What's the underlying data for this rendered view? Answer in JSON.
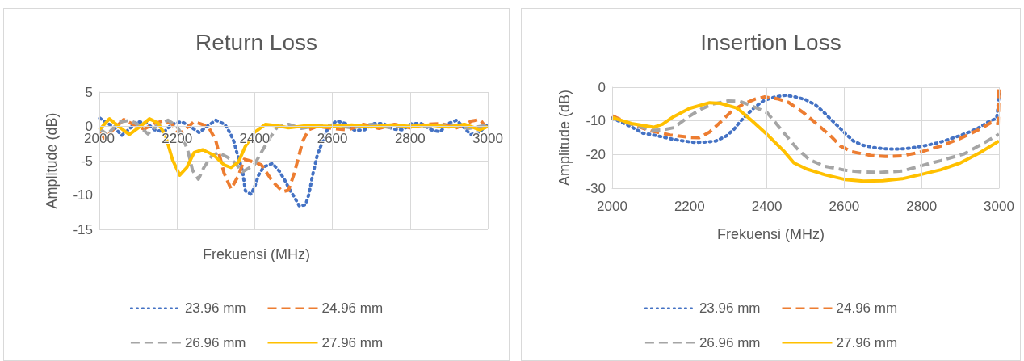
{
  "chart_data": [
    {
      "type": "line",
      "title": "Return Loss",
      "xlabel": "Frekuensi (MHz)",
      "ylabel": "Amplitude (dB)",
      "xlim": [
        2000,
        3000
      ],
      "xticks": [
        2000,
        2200,
        2400,
        2600,
        2800,
        3000
      ],
      "ylim": [
        -15,
        5
      ],
      "yticks": [
        -15,
        -10,
        -5,
        0,
        5
      ],
      "grid": true,
      "legend": "bottom",
      "marker": "none",
      "series": [
        {
          "name": "23.96 mm",
          "color": "#4472c4",
          "line_style": "dotted",
          "x": [
            2001,
            2039,
            2058,
            2077,
            2096,
            2122,
            2142,
            2167,
            2186,
            2212,
            2236,
            2257,
            2277,
            2300,
            2323,
            2337,
            2347,
            2354,
            2362,
            2369,
            2376,
            2391,
            2401,
            2410,
            2423,
            2446,
            2463,
            2477,
            2489,
            2503,
            2515,
            2531,
            2539,
            2544,
            2549,
            2555,
            2561,
            2570,
            2579,
            2590,
            2611,
            2635,
            2658,
            2683,
            2707,
            2732,
            2756,
            2781,
            2804,
            2829,
            2854,
            2877,
            2898,
            2920,
            2956,
            2978,
            3000
          ],
          "values": [
            1.2,
            -0.2,
            -1.3,
            -0.4,
            0.7,
            0.5,
            -0.5,
            -0.8,
            0.3,
            0.7,
            -0.1,
            -0.9,
            0,
            0.9,
            0.3,
            -1,
            -2.3,
            -3.8,
            -5.2,
            -6.6,
            -9.4,
            -9.9,
            -8.6,
            -7.1,
            -5.9,
            -5.4,
            -6.5,
            -7.8,
            -9.1,
            -10.4,
            -11.6,
            -11.4,
            -10,
            -8.6,
            -7.1,
            -5.7,
            -4.2,
            -2.9,
            -1.5,
            -0.1,
            0.8,
            0.4,
            -0.6,
            -0.5,
            0.4,
            0.4,
            -0.4,
            -0.5,
            0.4,
            0.4,
            -0.5,
            -0.8,
            0.4,
            0.9,
            -1.2,
            -0.9,
            0.4
          ]
        },
        {
          "name": "24.96 mm",
          "color": "#ed7d31",
          "line_style": "dashed",
          "x": [
            2000,
            2015,
            2035,
            2063,
            2090,
            2115,
            2140,
            2165,
            2185,
            2207,
            2244,
            2280,
            2299,
            2321,
            2339,
            2358,
            2373,
            2399,
            2417,
            2447,
            2472,
            2487,
            2502,
            2524,
            2539,
            2561,
            2600,
            2640,
            2680,
            2720,
            2760,
            2800,
            2840,
            2880,
            2920,
            2960,
            2980,
            3000
          ],
          "values": [
            -0.9,
            -1.8,
            -0.5,
            1.0,
            0.2,
            -0.4,
            0.4,
            0.8,
            0.5,
            -1.1,
            0.7,
            0,
            -1.9,
            -6.8,
            -9.1,
            -7.2,
            -4.8,
            -5.2,
            -5.6,
            -8.1,
            -9.5,
            -9.3,
            -6.8,
            -2.1,
            -0.5,
            0,
            -0.3,
            -0.5,
            0.3,
            -0.3,
            0.3,
            -0.2,
            0.3,
            0.4,
            -0.2,
            0.8,
            1,
            -0.5
          ]
        },
        {
          "name": "26.96 mm",
          "color": "#a5a5a5",
          "line_style": "dashed",
          "x": [
            2000,
            2020,
            2050,
            2080,
            2100,
            2125,
            2150,
            2177,
            2200,
            2215,
            2229,
            2240,
            2255,
            2269,
            2288,
            2306,
            2330,
            2347,
            2369,
            2399,
            2420,
            2439,
            2458,
            2487,
            2520,
            2550,
            2600,
            2650,
            2700,
            2750,
            2800,
            2850,
            2900,
            2950,
            3000
          ],
          "values": [
            -0.3,
            -1.2,
            0.6,
            0.9,
            0.2,
            -1.1,
            0.2,
            0.9,
            0,
            -1.5,
            -3.8,
            -6.4,
            -7.7,
            -6,
            -4.4,
            -3.8,
            -4.5,
            -5.2,
            -6.6,
            -5.6,
            -3.5,
            -1.7,
            -0.1,
            0.3,
            -0.3,
            0,
            0.2,
            -0.2,
            0.3,
            -0.2,
            0.2,
            0,
            0.3,
            -0.3,
            0.2
          ]
        },
        {
          "name": "27.96 mm",
          "color": "#ffc000",
          "line_style": "solid",
          "x": [
            2000,
            2026,
            2052,
            2077,
            2103,
            2129,
            2151,
            2170,
            2188,
            2207,
            2225,
            2244,
            2266,
            2295,
            2321,
            2339,
            2358,
            2376,
            2399,
            2428,
            2458,
            2487,
            2531,
            2600,
            2650,
            2700,
            2750,
            2800,
            2850,
            2900,
            2940,
            2980,
            3000
          ],
          "values": [
            -0.5,
            1.1,
            -0.1,
            -1.2,
            -0.1,
            1.1,
            0.5,
            -1.3,
            -4.8,
            -7.1,
            -6,
            -3.8,
            -3.4,
            -4.2,
            -5.6,
            -6,
            -5.2,
            -2.9,
            -0.9,
            0.3,
            0.1,
            -0.2,
            0.1,
            0,
            0.2,
            -0.1,
            0.2,
            0,
            0.2,
            -0.1,
            0.3,
            -0.5,
            0
          ]
        }
      ]
    },
    {
      "type": "line",
      "title": "Insertion Loss",
      "xlabel": "Frekuensi (MHz)",
      "ylabel": "Amplitude (dB)",
      "xlim": [
        2000,
        3000
      ],
      "xticks": [
        2000,
        2200,
        2400,
        2600,
        2800,
        3000
      ],
      "ylim": [
        -30,
        0
      ],
      "yticks": [
        -30,
        -20,
        -10,
        0
      ],
      "grid": true,
      "legend": "bottom",
      "marker": "none",
      "series": [
        {
          "name": "23.96 mm",
          "color": "#4472c4",
          "line_style": "dotted",
          "x": [
            2000,
            2025,
            2052,
            2080,
            2103,
            2131,
            2158,
            2186,
            2213,
            2240,
            2268,
            2295,
            2315,
            2331,
            2350,
            2370,
            2393,
            2421,
            2448,
            2475,
            2500,
            2526,
            2546,
            2565,
            2585,
            2604,
            2624,
            2647,
            2675,
            2702,
            2730,
            2757,
            2788,
            2816,
            2843,
            2871,
            2896,
            2924,
            2947,
            2971,
            2994,
            2997,
            2999,
            3000
          ],
          "values": [
            -9.2,
            -10.4,
            -11.9,
            -13.7,
            -14.1,
            -14.8,
            -15.5,
            -16,
            -16.4,
            -16.3,
            -16,
            -14.5,
            -12.5,
            -10.2,
            -8,
            -5.8,
            -3.9,
            -2.9,
            -2.4,
            -2.9,
            -3.7,
            -5.3,
            -7.3,
            -9.5,
            -11.7,
            -13.9,
            -16,
            -17.2,
            -17.9,
            -18.3,
            -18.4,
            -18.3,
            -17.8,
            -17.2,
            -16.5,
            -15.5,
            -14.5,
            -13.3,
            -12.1,
            -10.4,
            -9.2,
            -6.4,
            -3.5,
            -2
          ]
        },
        {
          "name": "24.96 mm",
          "color": "#ed7d31",
          "line_style": "dashed",
          "x": [
            2000,
            2050,
            2100,
            2150,
            2201,
            2225,
            2252,
            2276,
            2310,
            2338,
            2370,
            2393,
            2430,
            2456,
            2495,
            2530,
            2565,
            2590,
            2620,
            2670,
            2706,
            2750,
            2792,
            2850,
            2900,
            2950,
            2980,
            2998,
            3000
          ],
          "values": [
            -8.5,
            -11,
            -13,
            -14.2,
            -14.9,
            -15,
            -13.3,
            -10.8,
            -7,
            -5.1,
            -3.5,
            -2.9,
            -3.5,
            -4.5,
            -7.6,
            -11,
            -14.5,
            -17.5,
            -19.2,
            -20.3,
            -20.6,
            -20.4,
            -19.4,
            -17.5,
            -15.2,
            -12.5,
            -10.5,
            -10.8,
            0
          ]
        },
        {
          "name": "26.96 mm",
          "color": "#a5a5a5",
          "line_style": "dashed",
          "x": [
            2000,
            2050,
            2103,
            2130,
            2160,
            2197,
            2230,
            2260,
            2299,
            2330,
            2360,
            2401,
            2448,
            2480,
            2511,
            2550,
            2605,
            2650,
            2690,
            2750,
            2800,
            2850,
            2910,
            2950,
            3000
          ],
          "values": [
            -9,
            -11,
            -12.8,
            -12.7,
            -12,
            -8.8,
            -6.5,
            -5,
            -4.1,
            -4.2,
            -5.5,
            -7.6,
            -14.1,
            -18.5,
            -21.6,
            -23.5,
            -24.7,
            -25.2,
            -25.3,
            -24.9,
            -23.3,
            -21.8,
            -19.8,
            -17.3,
            -14
          ]
        },
        {
          "name": "27.96 mm",
          "color": "#ffc000",
          "line_style": "solid",
          "x": [
            2000,
            2050,
            2107,
            2130,
            2158,
            2200,
            2252,
            2280,
            2323,
            2362,
            2401,
            2444,
            2470,
            2503,
            2550,
            2601,
            2650,
            2700,
            2750,
            2800,
            2850,
            2900,
            2950,
            3000
          ],
          "values": [
            -9,
            -10.8,
            -11.9,
            -11,
            -8.8,
            -6.3,
            -4.6,
            -4.8,
            -6.2,
            -10,
            -14.1,
            -19,
            -22.5,
            -24.3,
            -26,
            -27.4,
            -27.9,
            -27.8,
            -27.2,
            -25.9,
            -24.5,
            -22.5,
            -19.5,
            -16
          ]
        }
      ]
    }
  ]
}
